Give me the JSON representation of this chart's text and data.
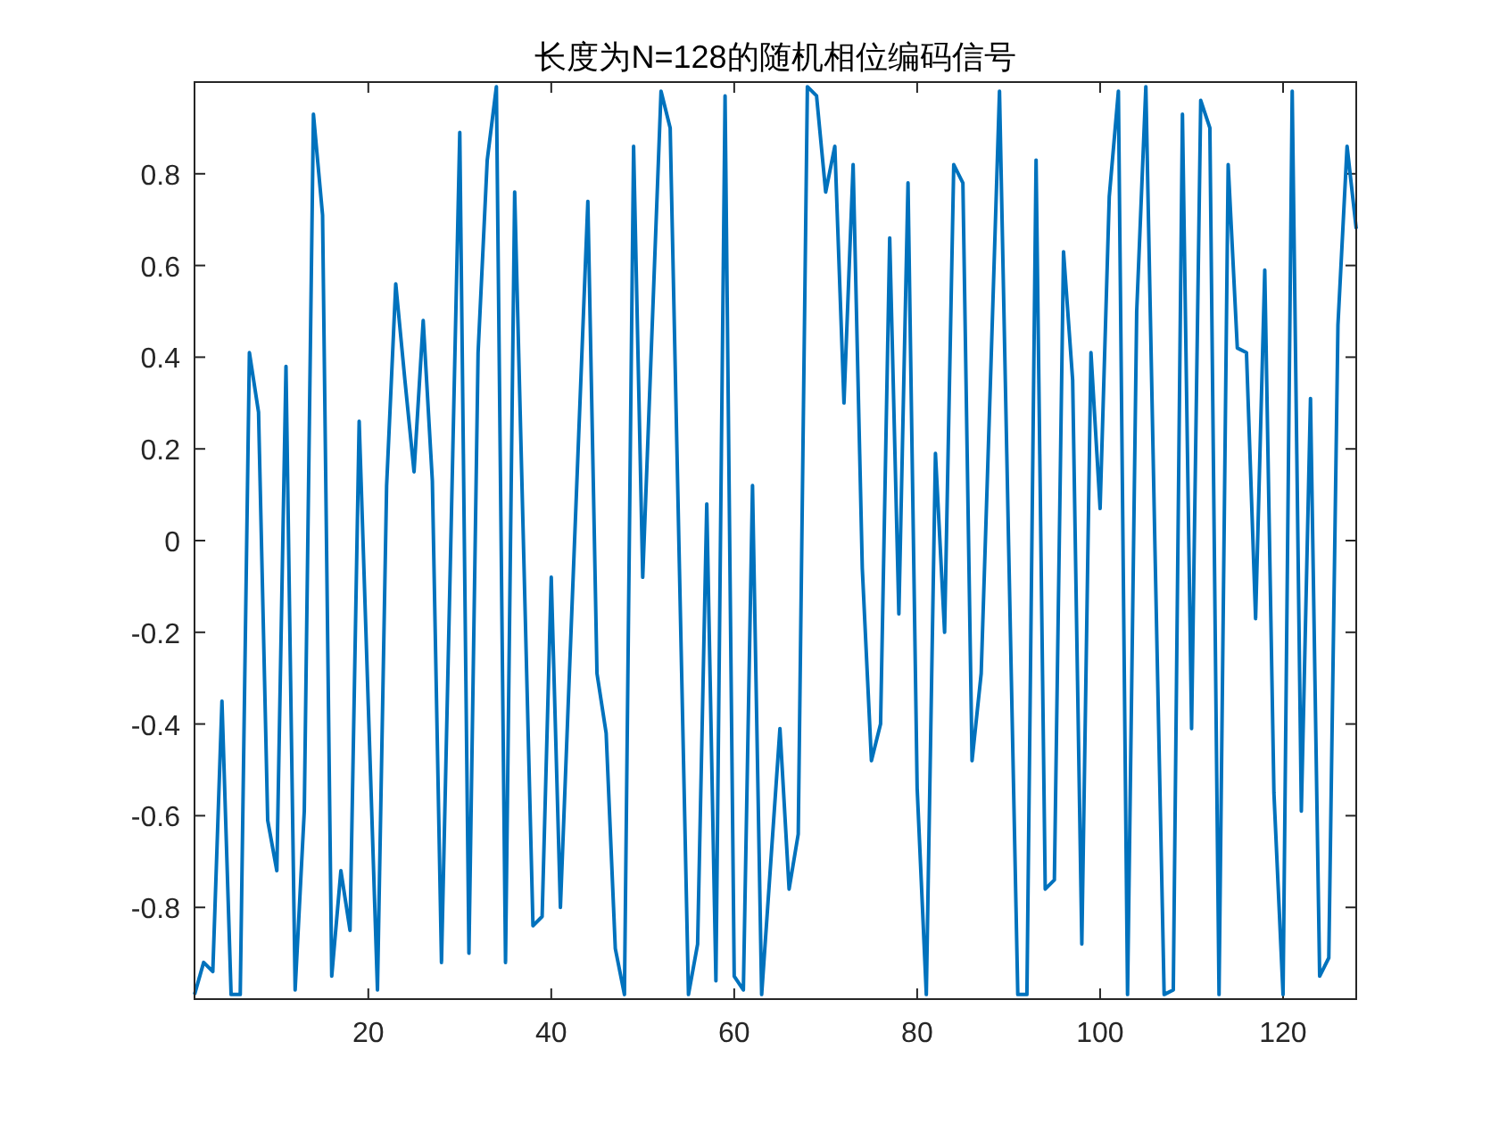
{
  "chart_data": {
    "type": "line",
    "title": "长度为N=128的随机相位编码信号",
    "x": [
      1,
      2,
      3,
      4,
      5,
      6,
      7,
      8,
      9,
      10,
      11,
      12,
      13,
      14,
      15,
      16,
      17,
      18,
      19,
      20,
      21,
      22,
      23,
      24,
      25,
      26,
      27,
      28,
      29,
      30,
      31,
      32,
      33,
      34,
      35,
      36,
      37,
      38,
      39,
      40,
      41,
      42,
      43,
      44,
      45,
      46,
      47,
      48,
      49,
      50,
      51,
      52,
      53,
      54,
      55,
      56,
      57,
      58,
      59,
      60,
      61,
      62,
      63,
      64,
      65,
      66,
      67,
      68,
      69,
      70,
      71,
      72,
      73,
      74,
      75,
      76,
      77,
      78,
      79,
      80,
      81,
      82,
      83,
      84,
      85,
      86,
      87,
      88,
      89,
      90,
      91,
      92,
      93,
      94,
      95,
      96,
      97,
      98,
      99,
      100,
      101,
      102,
      103,
      104,
      105,
      106,
      107,
      108,
      109,
      110,
      111,
      112,
      113,
      114,
      115,
      116,
      117,
      118,
      119,
      120,
      121,
      122,
      123,
      124,
      125,
      126,
      127,
      128
    ],
    "series": [
      {
        "color": "#0072bd",
        "values": [
          -0.99,
          -0.92,
          -0.94,
          -0.35,
          -0.99,
          -0.99,
          0.41,
          0.28,
          -0.61,
          -0.72,
          0.38,
          -0.98,
          -0.59,
          0.93,
          0.71,
          -0.95,
          -0.72,
          -0.85,
          0.26,
          -0.36,
          -0.98,
          0.12,
          0.56,
          0.35,
          0.15,
          0.48,
          0.13,
          -0.92,
          -0.02,
          0.89,
          -0.9,
          0.41,
          0.83,
          0.99,
          -0.92,
          0.76,
          -0.04,
          -0.84,
          -0.82,
          -0.08,
          -0.8,
          -0.28,
          0.23,
          0.74,
          -0.29,
          -0.42,
          -0.89,
          -0.99,
          0.86,
          -0.08,
          0.45,
          0.98,
          0.9,
          -0.05,
          -0.99,
          -0.88,
          0.08,
          -0.96,
          0.97,
          -0.95,
          -0.98,
          0.12,
          -0.99,
          -0.7,
          -0.41,
          -0.76,
          -0.64,
          0.99,
          0.97,
          0.76,
          0.86,
          0.3,
          0.82,
          -0.06,
          -0.48,
          -0.4,
          0.66,
          -0.16,
          0.78,
          -0.54,
          -0.99,
          0.19,
          -0.2,
          0.82,
          0.78,
          -0.48,
          -0.29,
          0.34,
          0.98,
          -0.01,
          -0.99,
          -0.99,
          0.83,
          -0.76,
          -0.74,
          0.63,
          0.35,
          -0.88,
          0.41,
          0.07,
          0.75,
          0.98,
          -0.99,
          0.5,
          0.99,
          -0.02,
          -0.99,
          -0.98,
          0.93,
          -0.41,
          0.96,
          0.9,
          -0.99,
          0.82,
          0.42,
          0.41,
          -0.17,
          0.59,
          -0.55,
          -0.99,
          0.98,
          -0.59,
          0.31,
          -0.95,
          -0.91,
          0.47,
          0.86,
          0.68
        ]
      }
    ],
    "xlim": [
      1,
      128
    ],
    "xticks": [
      20,
      40,
      60,
      80,
      100,
      120
    ],
    "ylim": [
      -1,
      1
    ],
    "yticks": [
      -0.8,
      -0.6,
      -0.4,
      -0.2,
      0,
      0.2,
      0.4,
      0.6,
      0.8
    ]
  }
}
